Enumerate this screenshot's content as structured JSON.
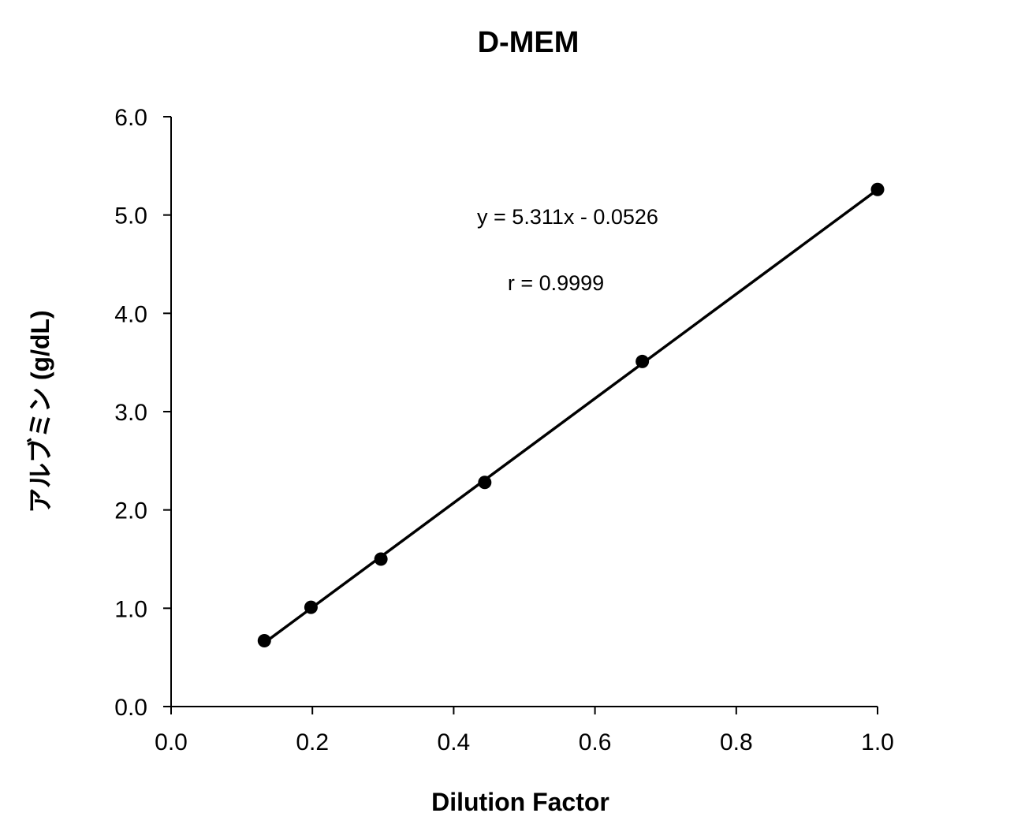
{
  "chart_data": {
    "type": "scatter",
    "title": "D-MEM",
    "xlabel": "Dilution Factor",
    "ylabel": "アルブミン (g/dL)",
    "xlim": [
      0.0,
      1.0
    ],
    "ylim": [
      0.0,
      6.0
    ],
    "x_ticks": [
      "0.0",
      "0.2",
      "0.4",
      "0.6",
      "0.8",
      "1.0"
    ],
    "y_ticks": [
      "0.0",
      "1.0",
      "2.0",
      "3.0",
      "4.0",
      "5.0",
      "6.0"
    ],
    "grid": false,
    "legend": "none",
    "series": [
      {
        "points": [
          {
            "x": 0.132,
            "y": 0.67
          },
          {
            "x": 0.198,
            "y": 1.01
          },
          {
            "x": 0.297,
            "y": 1.5
          },
          {
            "x": 0.444,
            "y": 2.28
          },
          {
            "x": 0.667,
            "y": 3.51
          },
          {
            "x": 1.0,
            "y": 5.26
          }
        ]
      }
    ],
    "trendline": {
      "slope": 5.311,
      "intercept": -0.0526,
      "x_range": [
        0.132,
        1.0
      ]
    },
    "annotations": {
      "equation": "y = 5.311x - 0.0526",
      "r_value": "r = 0.9999"
    },
    "colors": {
      "marker": "#000000",
      "line": "#000000"
    }
  }
}
